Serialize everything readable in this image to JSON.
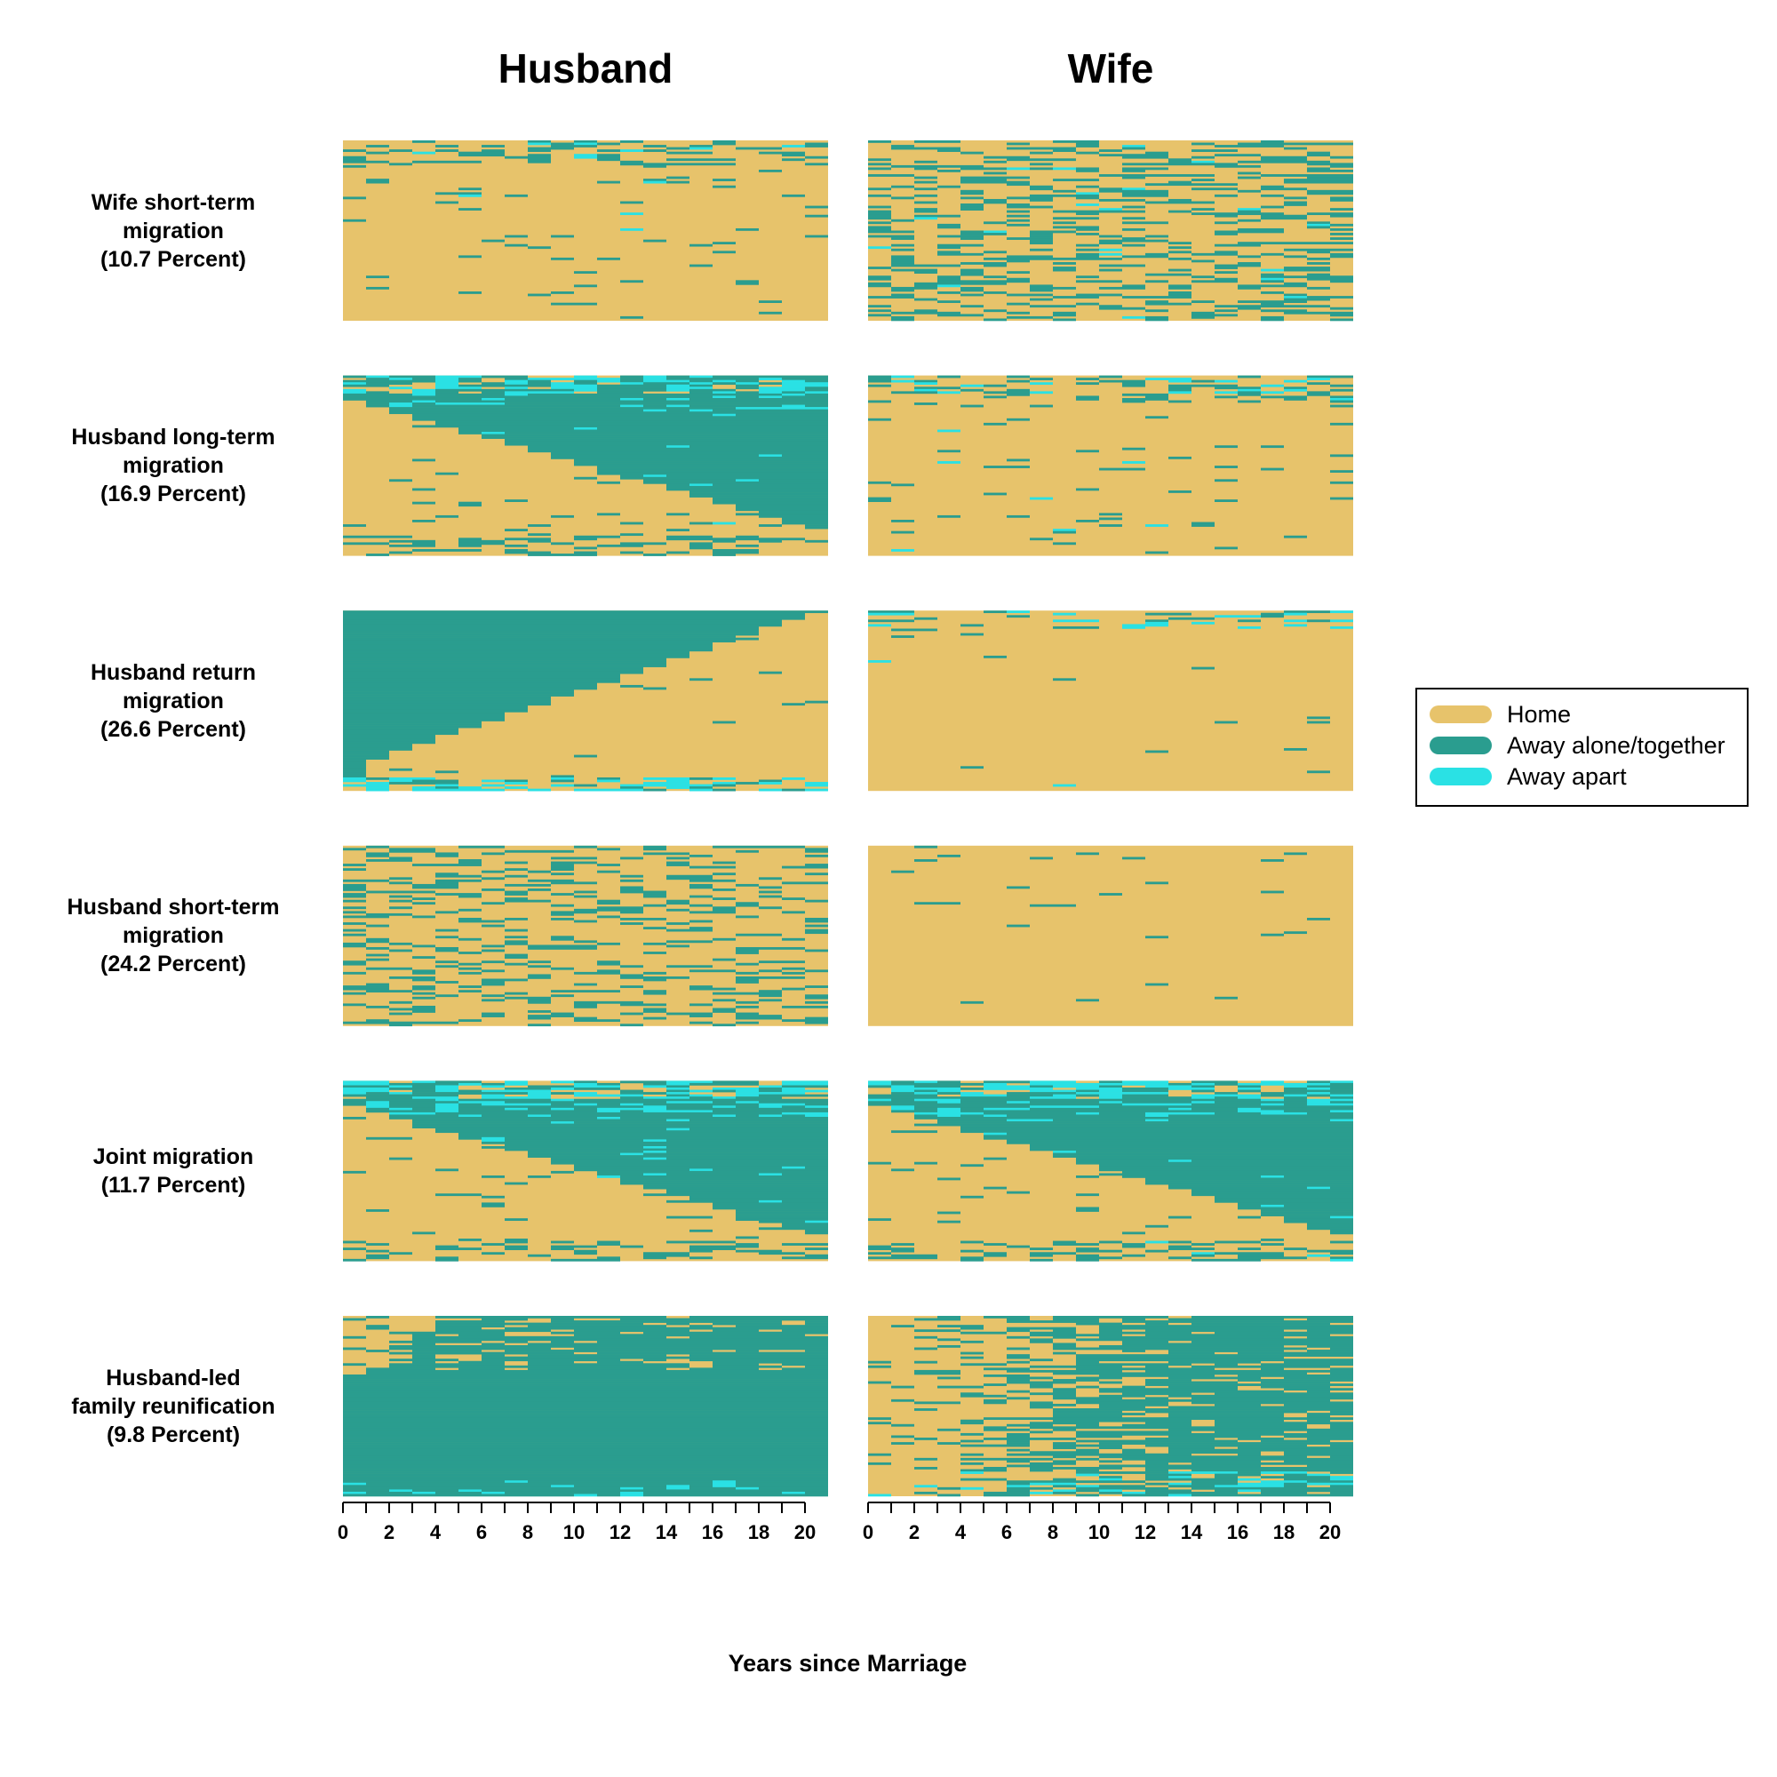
{
  "chart_data": {
    "type": "heatmap",
    "subtype": "sequence-index-plot",
    "columns": [
      "Husband",
      "Wife"
    ],
    "xlabel": "Years since Marriage",
    "xlim": [
      0,
      21
    ],
    "x_ticks": [
      0,
      1,
      2,
      3,
      4,
      5,
      6,
      7,
      8,
      9,
      10,
      11,
      12,
      13,
      14,
      15,
      16,
      17,
      18,
      19,
      20
    ],
    "x_tick_labels": [
      "0",
      "2",
      "4",
      "6",
      "8",
      "10",
      "12",
      "14",
      "16",
      "18",
      "20"
    ],
    "states": [
      {
        "code": "H",
        "label": "Home",
        "color": "#E7C36B"
      },
      {
        "code": "A",
        "label": "Away alone/together",
        "color": "#2A9D8F"
      },
      {
        "code": "P",
        "label": "Away apart",
        "color": "#2AE1E4"
      }
    ],
    "legend_position": "right",
    "clusters": [
      {
        "name_lines": [
          "Wife short-term",
          "migration",
          "(10.7 Percent)"
        ],
        "name": "Wife short-term migration",
        "percent": 10.7,
        "husband": {
          "pattern": "mostly-home",
          "away_share": 0.06,
          "apart_share": 0.01,
          "top_rows_active": 0.2
        },
        "wife": {
          "pattern": "scattered-short-spells",
          "away_share": 0.25,
          "apart_share": 0.01
        }
      },
      {
        "name_lines": [
          "Husband long-term",
          "migration",
          "(16.9 Percent)"
        ],
        "name": "Husband long-term migration",
        "percent": 16.9,
        "husband": {
          "pattern": "staircase-onset",
          "away_share": 0.5,
          "apart_share": 0.05
        },
        "wife": {
          "pattern": "mostly-home",
          "away_share": 0.05,
          "apart_share": 0.02
        }
      },
      {
        "name_lines": [
          "Husband return",
          "migration",
          "(26.6 Percent)"
        ],
        "name": "Husband return migration",
        "percent": 26.6,
        "husband": {
          "pattern": "staircase-return",
          "away_share": 0.3,
          "apart_share": 0.02
        },
        "wife": {
          "pattern": "mostly-home",
          "away_share": 0.02,
          "apart_share": 0.02
        }
      },
      {
        "name_lines": [
          "Husband short-term",
          "migration",
          "(24.2 Percent)"
        ],
        "name": "Husband short-term migration",
        "percent": 24.2,
        "husband": {
          "pattern": "scattered-short-spells",
          "away_share": 0.2,
          "apart_share": 0.0
        },
        "wife": {
          "pattern": "mostly-home",
          "away_share": 0.01,
          "apart_share": 0.0
        }
      },
      {
        "name_lines": [
          "Joint migration",
          "(11.7 Percent)"
        ],
        "name": "Joint migration",
        "percent": 11.7,
        "husband": {
          "pattern": "staircase-onset",
          "away_share": 0.6,
          "apart_share": 0.08
        },
        "wife": {
          "pattern": "staircase-onset",
          "away_share": 0.6,
          "apart_share": 0.08
        }
      },
      {
        "name_lines": [
          "Husband-led",
          "family reunification",
          "(9.8 Percent)"
        ],
        "name": "Husband-led family reunification",
        "percent": 9.8,
        "husband": {
          "pattern": "early-away",
          "away_share": 0.85,
          "apart_share": 0.02
        },
        "wife": {
          "pattern": "late-onset-scattered",
          "away_share": 0.6,
          "apart_share": 0.04
        }
      }
    ]
  }
}
